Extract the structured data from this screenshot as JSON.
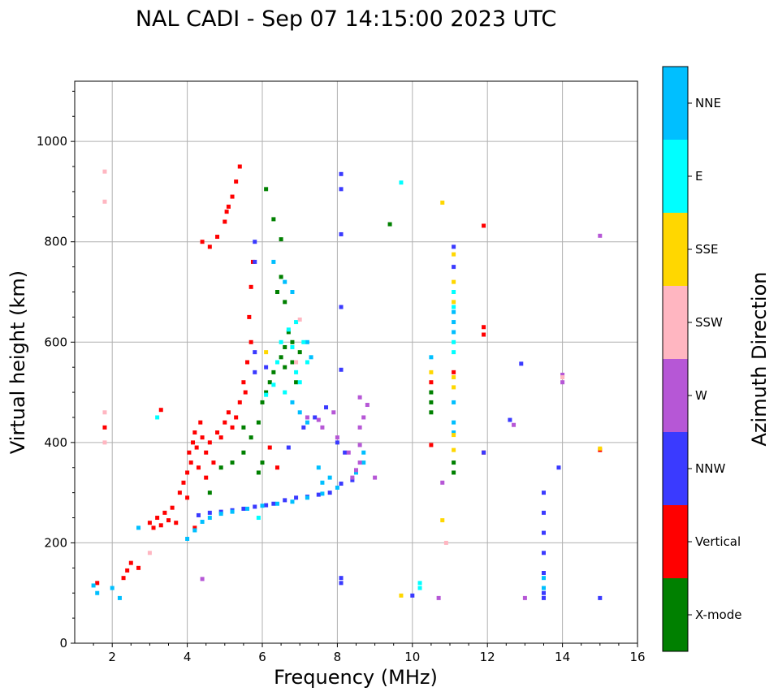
{
  "chart_data": {
    "type": "scatter",
    "title": "NAL CADI - Sep 07 14:15:00 2023 UTC",
    "xlabel": "Frequency (MHz)",
    "ylabel": "Virtual height (km)",
    "xlim": [
      1,
      16
    ],
    "ylim": [
      0,
      1120
    ],
    "xticks": [
      2,
      4,
      6,
      8,
      10,
      12,
      14,
      16
    ],
    "yticks": [
      0,
      200,
      400,
      600,
      800,
      1000
    ],
    "grid": true,
    "colorbar": {
      "label": "Azimuth Direction",
      "categories": [
        {
          "name": "X-mode",
          "color": "#008000"
        },
        {
          "name": "Vertical",
          "color": "#ff0000"
        },
        {
          "name": "NNW",
          "color": "#3a3aff"
        },
        {
          "name": "W",
          "color": "#b657d6"
        },
        {
          "name": "SSW",
          "color": "#ffb6c1"
        },
        {
          "name": "SSE",
          "color": "#ffd700"
        },
        {
          "name": "E",
          "color": "#00ffff"
        },
        {
          "name": "NNE",
          "color": "#00bfff"
        }
      ]
    },
    "series": [
      {
        "name": "Vertical",
        "points": [
          [
            1.6,
            120
          ],
          [
            1.8,
            430
          ],
          [
            2.3,
            130
          ],
          [
            2.4,
            145
          ],
          [
            2.5,
            160
          ],
          [
            2.7,
            150
          ],
          [
            3.0,
            240
          ],
          [
            3.1,
            230
          ],
          [
            3.2,
            250
          ],
          [
            3.3,
            235
          ],
          [
            3.4,
            260
          ],
          [
            3.5,
            245
          ],
          [
            3.6,
            270
          ],
          [
            3.7,
            240
          ],
          [
            3.8,
            300
          ],
          [
            3.9,
            320
          ],
          [
            4.0,
            340
          ],
          [
            4.05,
            380
          ],
          [
            4.1,
            360
          ],
          [
            4.15,
            400
          ],
          [
            4.2,
            420
          ],
          [
            4.25,
            390
          ],
          [
            4.3,
            350
          ],
          [
            4.35,
            440
          ],
          [
            4.4,
            410
          ],
          [
            4.5,
            380
          ],
          [
            4.6,
            400
          ],
          [
            4.7,
            360
          ],
          [
            4.8,
            420
          ],
          [
            4.9,
            410
          ],
          [
            5.0,
            440
          ],
          [
            5.1,
            460
          ],
          [
            5.2,
            430
          ],
          [
            5.3,
            450
          ],
          [
            5.4,
            480
          ],
          [
            5.5,
            520
          ],
          [
            5.6,
            560
          ],
          [
            5.7,
            600
          ],
          [
            5.55,
            500
          ],
          [
            5.65,
            650
          ],
          [
            5.7,
            710
          ],
          [
            5.75,
            760
          ],
          [
            4.4,
            800
          ],
          [
            4.6,
            790
          ],
          [
            4.8,
            810
          ],
          [
            5.0,
            840
          ],
          [
            5.05,
            860
          ],
          [
            5.1,
            870
          ],
          [
            5.2,
            890
          ],
          [
            5.3,
            920
          ],
          [
            5.4,
            950
          ],
          [
            3.3,
            465
          ],
          [
            6.2,
            390
          ],
          [
            6.4,
            350
          ],
          [
            10.5,
            395
          ],
          [
            11.9,
            380
          ],
          [
            11.9,
            630
          ],
          [
            11.9,
            615
          ],
          [
            11.9,
            832
          ],
          [
            15.0,
            385
          ],
          [
            11.1,
            540
          ],
          [
            10.5,
            520
          ],
          [
            4.2,
            230
          ],
          [
            4.0,
            290
          ],
          [
            4.5,
            330
          ]
        ]
      },
      {
        "name": "X-mode",
        "points": [
          [
            4.6,
            300
          ],
          [
            4.9,
            350
          ],
          [
            5.2,
            360
          ],
          [
            5.5,
            380
          ],
          [
            5.7,
            410
          ],
          [
            5.9,
            440
          ],
          [
            6.0,
            480
          ],
          [
            6.1,
            500
          ],
          [
            6.2,
            520
          ],
          [
            6.3,
            540
          ],
          [
            6.5,
            570
          ],
          [
            6.6,
            590
          ],
          [
            6.7,
            620
          ],
          [
            6.8,
            560
          ],
          [
            6.9,
            520
          ],
          [
            7.0,
            580
          ],
          [
            6.4,
            700
          ],
          [
            6.5,
            730
          ],
          [
            6.6,
            680
          ],
          [
            6.3,
            845
          ],
          [
            6.5,
            805
          ],
          [
            6.1,
            905
          ],
          [
            5.9,
            340
          ],
          [
            6.0,
            360
          ],
          [
            5.5,
            430
          ],
          [
            10.5,
            480
          ],
          [
            10.5,
            460
          ],
          [
            10.5,
            500
          ],
          [
            11.1,
            340
          ],
          [
            11.1,
            360
          ],
          [
            9.4,
            835
          ],
          [
            6.6,
            550
          ],
          [
            6.8,
            600
          ]
        ]
      },
      {
        "name": "NNW",
        "points": [
          [
            4.3,
            255
          ],
          [
            4.6,
            260
          ],
          [
            4.9,
            262
          ],
          [
            5.2,
            265
          ],
          [
            5.5,
            268
          ],
          [
            5.8,
            272
          ],
          [
            6.1,
            275
          ],
          [
            6.3,
            278
          ],
          [
            6.6,
            285
          ],
          [
            6.9,
            290
          ],
          [
            7.2,
            292
          ],
          [
            7.5,
            296
          ],
          [
            7.8,
            300
          ],
          [
            8.1,
            318
          ],
          [
            8.4,
            325
          ],
          [
            7.1,
            430
          ],
          [
            7.4,
            450
          ],
          [
            7.7,
            470
          ],
          [
            8.0,
            400
          ],
          [
            8.2,
            380
          ],
          [
            8.1,
            815
          ],
          [
            8.1,
            905
          ],
          [
            8.1,
            935
          ],
          [
            8.1,
            545
          ],
          [
            8.1,
            670
          ],
          [
            8.1,
            130
          ],
          [
            8.1,
            120
          ],
          [
            10.0,
            95
          ],
          [
            13.5,
            300
          ],
          [
            13.5,
            260
          ],
          [
            13.5,
            220
          ],
          [
            13.5,
            180
          ],
          [
            13.5,
            140
          ],
          [
            13.5,
            100
          ],
          [
            13.5,
            90
          ],
          [
            13.9,
            350
          ],
          [
            15.0,
            90
          ],
          [
            12.6,
            445
          ],
          [
            12.9,
            557
          ],
          [
            11.9,
            380
          ],
          [
            11.1,
            790
          ],
          [
            11.1,
            750
          ],
          [
            6.7,
            390
          ],
          [
            5.8,
            800
          ],
          [
            5.8,
            760
          ],
          [
            5.8,
            580
          ],
          [
            5.8,
            540
          ],
          [
            6.1,
            550
          ]
        ]
      },
      {
        "name": "NNE",
        "points": [
          [
            4.0,
            208
          ],
          [
            4.2,
            225
          ],
          [
            4.4,
            242
          ],
          [
            4.6,
            250
          ],
          [
            4.9,
            258
          ],
          [
            5.2,
            262
          ],
          [
            5.6,
            268
          ],
          [
            6.0,
            274
          ],
          [
            6.4,
            278
          ],
          [
            6.8,
            282
          ],
          [
            7.2,
            290
          ],
          [
            7.6,
            298
          ],
          [
            8.0,
            310
          ],
          [
            8.5,
            340
          ],
          [
            8.7,
            360
          ],
          [
            8.7,
            380
          ],
          [
            6.3,
            760
          ],
          [
            6.6,
            720
          ],
          [
            6.8,
            700
          ],
          [
            7.2,
            600
          ],
          [
            7.3,
            570
          ],
          [
            6.8,
            480
          ],
          [
            7.0,
            460
          ],
          [
            7.2,
            440
          ],
          [
            7.5,
            350
          ],
          [
            7.6,
            320
          ],
          [
            7.8,
            330
          ],
          [
            11.1,
            420
          ],
          [
            11.1,
            440
          ],
          [
            11.1,
            480
          ],
          [
            11.1,
            640
          ],
          [
            11.1,
            620
          ],
          [
            11.1,
            660
          ],
          [
            10.5,
            570
          ],
          [
            13.5,
            130
          ],
          [
            13.5,
            110
          ],
          [
            2.0,
            110
          ],
          [
            1.6,
            100
          ],
          [
            1.5,
            115
          ],
          [
            2.2,
            90
          ],
          [
            2.7,
            230
          ]
        ]
      },
      {
        "name": "W",
        "points": [
          [
            8.4,
            330
          ],
          [
            8.5,
            345
          ],
          [
            8.6,
            360
          ],
          [
            8.6,
            395
          ],
          [
            8.6,
            430
          ],
          [
            8.7,
            450
          ],
          [
            8.6,
            490
          ],
          [
            8.8,
            475
          ],
          [
            7.2,
            450
          ],
          [
            7.5,
            445
          ],
          [
            7.6,
            430
          ],
          [
            7.9,
            460
          ],
          [
            8.0,
            410
          ],
          [
            8.3,
            380
          ],
          [
            9.0,
            330
          ],
          [
            13.0,
            90
          ],
          [
            14.0,
            520
          ],
          [
            14.0,
            535
          ],
          [
            12.7,
            435
          ],
          [
            10.8,
            320
          ],
          [
            15.0,
            812
          ],
          [
            10.7,
            90
          ],
          [
            4.4,
            128
          ]
        ]
      },
      {
        "name": "SSE",
        "points": [
          [
            10.8,
            878
          ],
          [
            11.1,
            775
          ],
          [
            11.1,
            720
          ],
          [
            11.1,
            680
          ],
          [
            11.1,
            530
          ],
          [
            11.1,
            510
          ],
          [
            11.1,
            415
          ],
          [
            11.1,
            385
          ],
          [
            10.8,
            245
          ],
          [
            9.7,
            95
          ],
          [
            15.0,
            388
          ],
          [
            10.5,
            540
          ],
          [
            6.1,
            580
          ]
        ]
      },
      {
        "name": "E",
        "points": [
          [
            6.1,
            495
          ],
          [
            6.3,
            515
          ],
          [
            6.4,
            560
          ],
          [
            6.5,
            600
          ],
          [
            6.8,
            590
          ],
          [
            6.9,
            540
          ],
          [
            7.0,
            520
          ],
          [
            7.2,
            560
          ],
          [
            7.1,
            600
          ],
          [
            10.2,
            110
          ],
          [
            10.2,
            120
          ],
          [
            9.7,
            918
          ],
          [
            11.1,
            700
          ],
          [
            11.1,
            670
          ],
          [
            11.1,
            600
          ],
          [
            11.1,
            580
          ],
          [
            6.7,
            625
          ],
          [
            6.9,
            640
          ],
          [
            3.2,
            450
          ],
          [
            5.9,
            250
          ],
          [
            6.6,
            500
          ]
        ]
      },
      {
        "name": "SSW",
        "points": [
          [
            1.8,
            940
          ],
          [
            1.8,
            880
          ],
          [
            1.8,
            460
          ],
          [
            1.8,
            400
          ],
          [
            3.0,
            180
          ],
          [
            10.9,
            200
          ],
          [
            14.0,
            530
          ],
          [
            6.9,
            560
          ],
          [
            7.0,
            645
          ]
        ]
      }
    ]
  }
}
